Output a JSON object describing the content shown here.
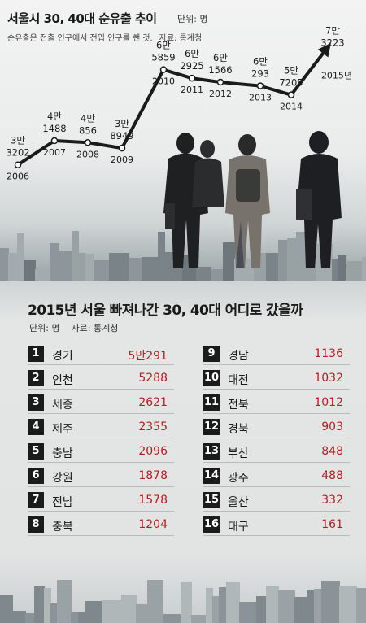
{
  "top": {
    "title": "서울시 30, 40대 순유출 추이",
    "unit": "단위: 명",
    "note": "순유출은 전출 인구에서 전입 인구를 뺀 것.",
    "source": "자료: 통계청"
  },
  "chart_data": {
    "type": "line",
    "title": "서울시 30, 40대 순유출 추이",
    "x": [
      "2006",
      "2007",
      "2008",
      "2009",
      "2010",
      "2011",
      "2012",
      "2013",
      "2014",
      "2015년"
    ],
    "values": [
      33202,
      41488,
      40856,
      38949,
      65859,
      62925,
      61566,
      60293,
      57205,
      73223
    ],
    "value_labels": [
      [
        "3만",
        "3202"
      ],
      [
        "4만",
        "1488"
      ],
      [
        "4만",
        "856"
      ],
      [
        "3만",
        "8949"
      ],
      [
        "6만",
        "5859"
      ],
      [
        "6만",
        "2925"
      ],
      [
        "6만",
        "1566"
      ],
      [
        "6만",
        "293"
      ],
      [
        "5만",
        "7205"
      ],
      [
        "7만",
        "3223"
      ]
    ],
    "ylim": [
      20000,
      80000
    ],
    "grid": false
  },
  "ranking": {
    "title": "2015년 서울 빠져나간 30, 40대 어디로 갔을까",
    "unit": "단위: 명",
    "source": "자료: 통계청",
    "left": [
      {
        "rank": "1",
        "name": "경기",
        "value": "5만291"
      },
      {
        "rank": "2",
        "name": "인천",
        "value": "5288"
      },
      {
        "rank": "3",
        "name": "세종",
        "value": "2621"
      },
      {
        "rank": "4",
        "name": "제주",
        "value": "2355"
      },
      {
        "rank": "5",
        "name": "충남",
        "value": "2096"
      },
      {
        "rank": "6",
        "name": "강원",
        "value": "1878"
      },
      {
        "rank": "7",
        "name": "전남",
        "value": "1578"
      },
      {
        "rank": "8",
        "name": "충북",
        "value": "1204"
      }
    ],
    "right": [
      {
        "rank": "9",
        "name": "경남",
        "value": "1136"
      },
      {
        "rank": "10",
        "name": "대전",
        "value": "1032"
      },
      {
        "rank": "11",
        "name": "전북",
        "value": "1012"
      },
      {
        "rank": "12",
        "name": "경북",
        "value": "903"
      },
      {
        "rank": "13",
        "name": "부산",
        "value": "848"
      },
      {
        "rank": "14",
        "name": "광주",
        "value": "488"
      },
      {
        "rank": "15",
        "name": "울산",
        "value": "332"
      },
      {
        "rank": "16",
        "name": "대구",
        "value": "161"
      }
    ]
  },
  "colors": {
    "line": "#1a1a1a",
    "value_red": "#b51d22",
    "badge": "#1b1b1b"
  }
}
